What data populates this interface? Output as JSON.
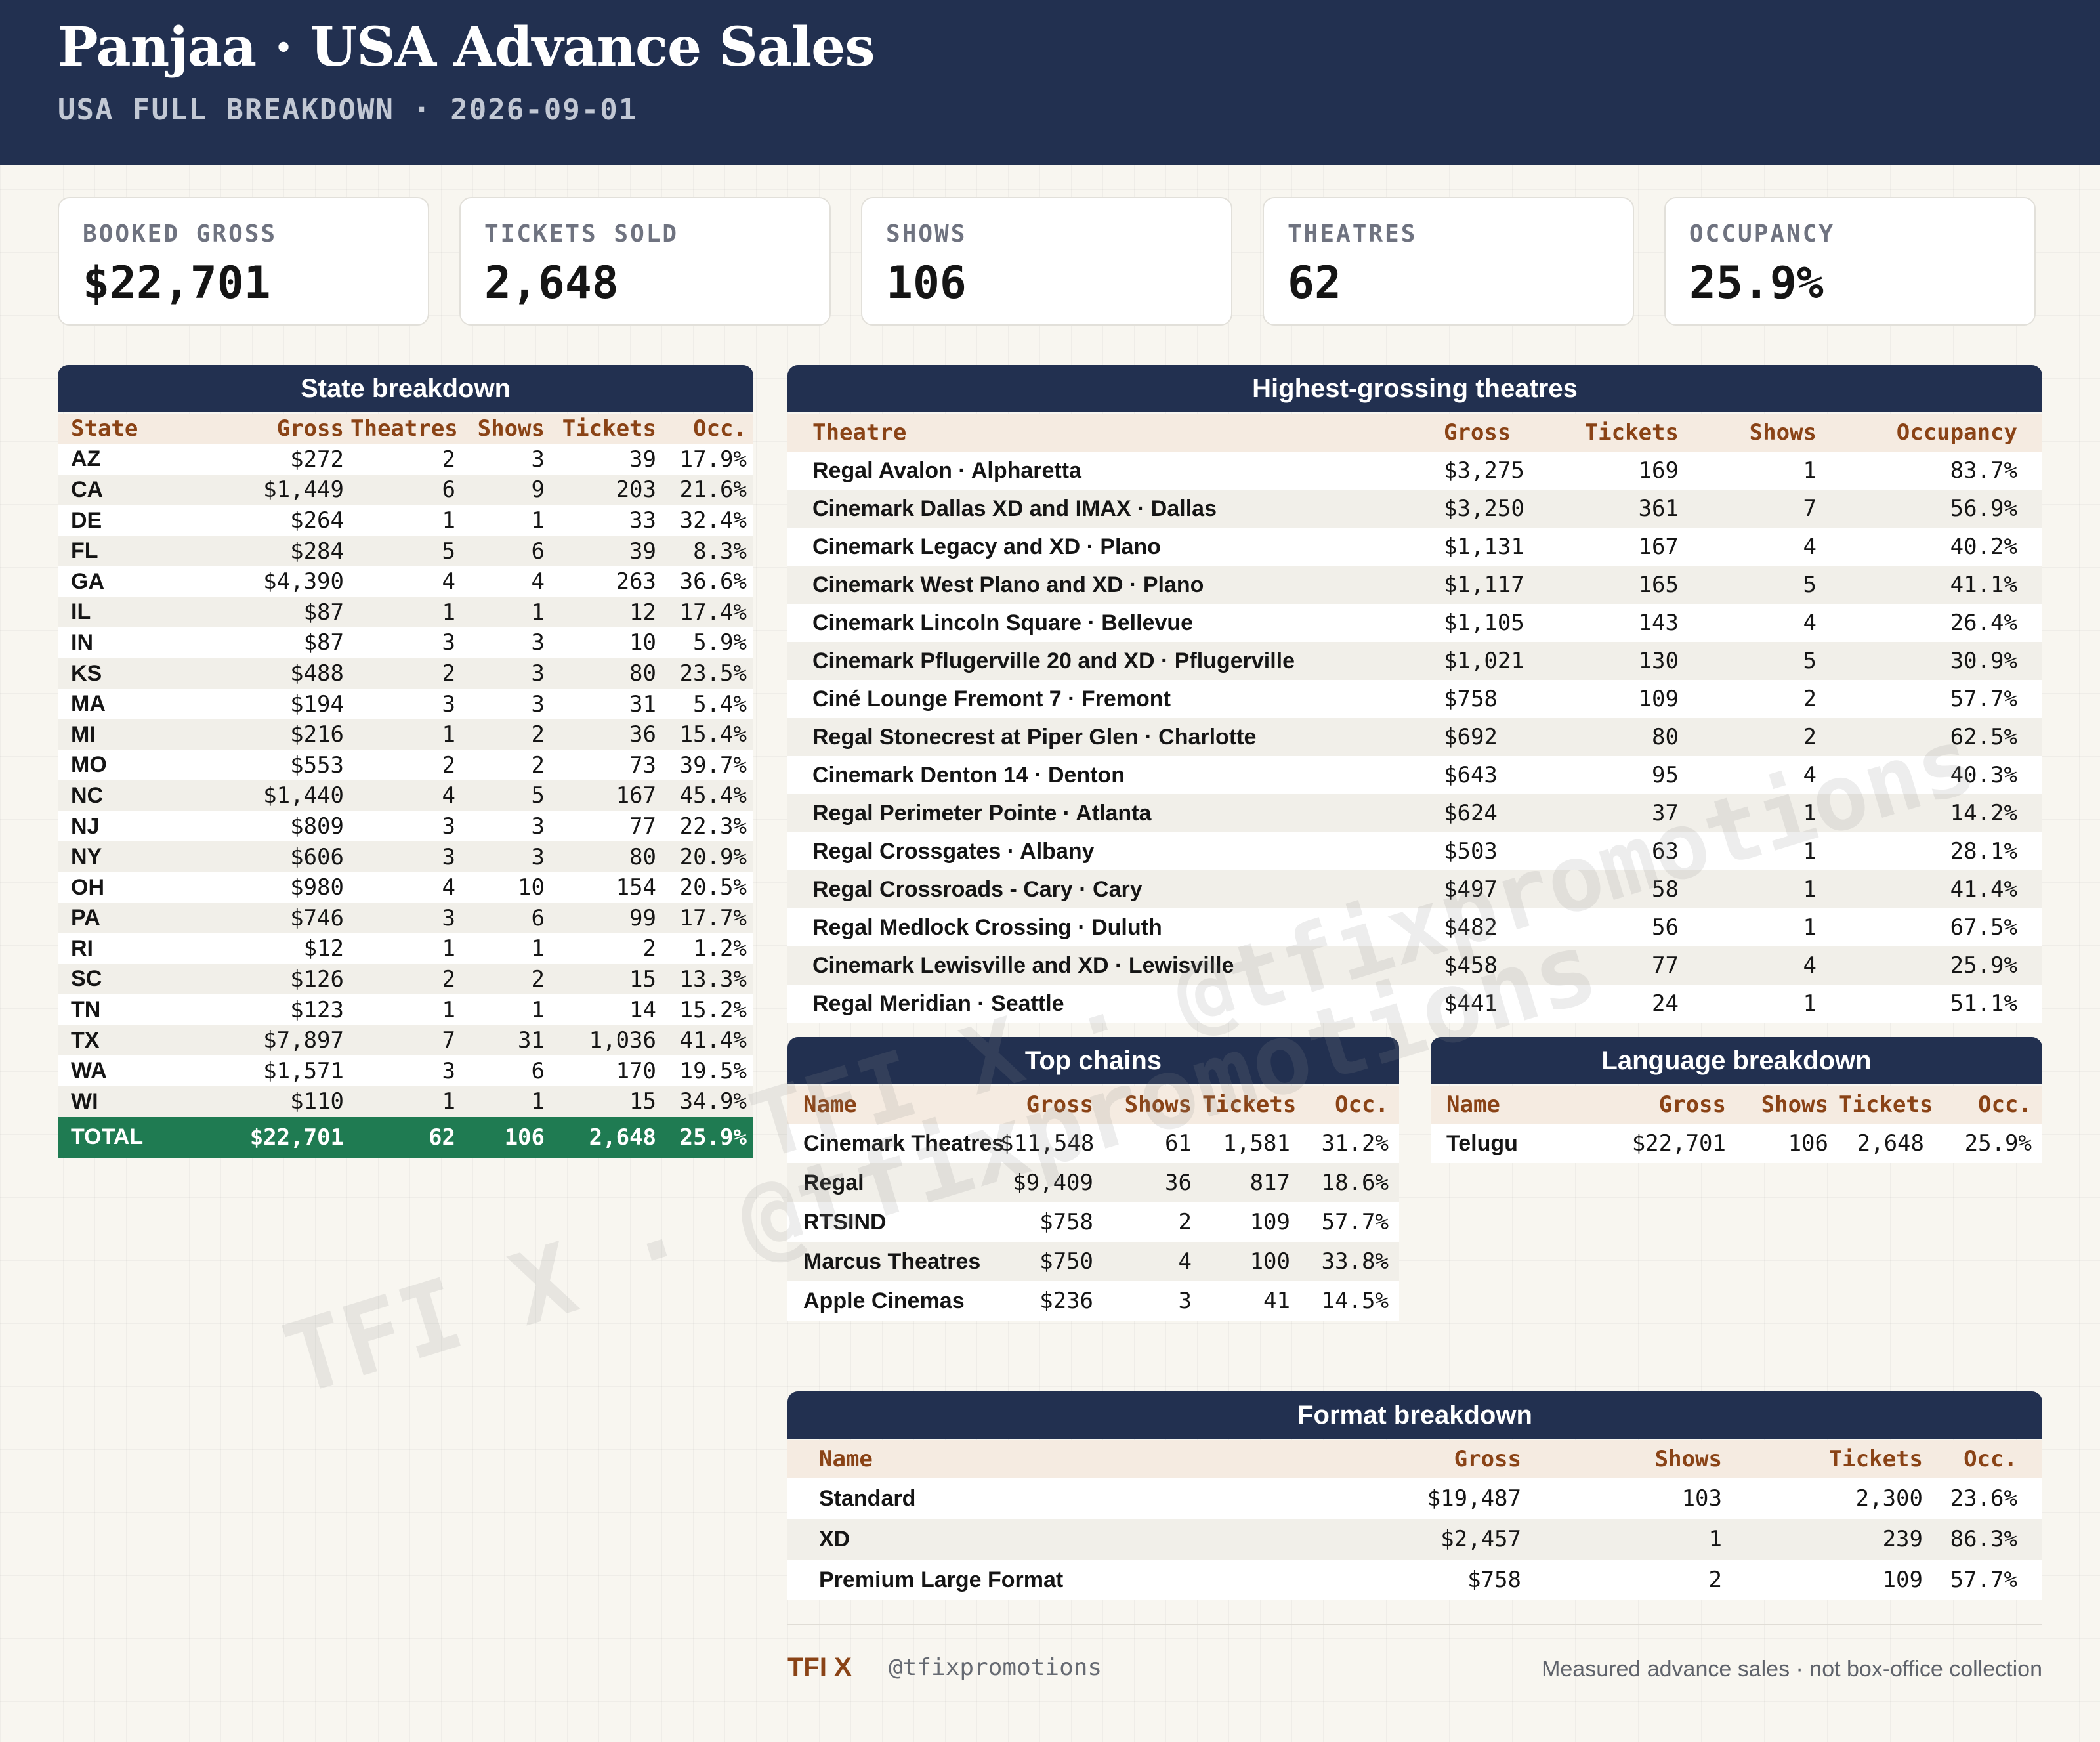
{
  "header": {
    "title": "Panjaa · USA Advance Sales",
    "subtitle": "USA FULL BREAKDOWN · 2026-09-01"
  },
  "kpis": [
    {
      "label": "BOOKED GROSS",
      "value": "$22,701"
    },
    {
      "label": "TICKETS SOLD",
      "value": "2,648"
    },
    {
      "label": "SHOWS",
      "value": "106"
    },
    {
      "label": "THEATRES",
      "value": "62"
    },
    {
      "label": "OCCUPANCY",
      "value": "25.9%"
    }
  ],
  "state_breakdown": {
    "title": "State breakdown",
    "columns": [
      "State",
      "Gross",
      "Theatres",
      "Shows",
      "Tickets",
      "Occ."
    ],
    "rows": [
      [
        "AZ",
        "$272",
        "2",
        "3",
        "39",
        "17.9%"
      ],
      [
        "CA",
        "$1,449",
        "6",
        "9",
        "203",
        "21.6%"
      ],
      [
        "DE",
        "$264",
        "1",
        "1",
        "33",
        "32.4%"
      ],
      [
        "FL",
        "$284",
        "5",
        "6",
        "39",
        "8.3%"
      ],
      [
        "GA",
        "$4,390",
        "4",
        "4",
        "263",
        "36.6%"
      ],
      [
        "IL",
        "$87",
        "1",
        "1",
        "12",
        "17.4%"
      ],
      [
        "IN",
        "$87",
        "3",
        "3",
        "10",
        "5.9%"
      ],
      [
        "KS",
        "$488",
        "2",
        "3",
        "80",
        "23.5%"
      ],
      [
        "MA",
        "$194",
        "3",
        "3",
        "31",
        "5.4%"
      ],
      [
        "MI",
        "$216",
        "1",
        "2",
        "36",
        "15.4%"
      ],
      [
        "MO",
        "$553",
        "2",
        "2",
        "73",
        "39.7%"
      ],
      [
        "NC",
        "$1,440",
        "4",
        "5",
        "167",
        "45.4%"
      ],
      [
        "NJ",
        "$809",
        "3",
        "3",
        "77",
        "22.3%"
      ],
      [
        "NY",
        "$606",
        "3",
        "3",
        "80",
        "20.9%"
      ],
      [
        "OH",
        "$980",
        "4",
        "10",
        "154",
        "20.5%"
      ],
      [
        "PA",
        "$746",
        "3",
        "6",
        "99",
        "17.7%"
      ],
      [
        "RI",
        "$12",
        "1",
        "1",
        "2",
        "1.2%"
      ],
      [
        "SC",
        "$126",
        "2",
        "2",
        "15",
        "13.3%"
      ],
      [
        "TN",
        "$123",
        "1",
        "1",
        "14",
        "15.2%"
      ],
      [
        "TX",
        "$7,897",
        "7",
        "31",
        "1,036",
        "41.4%"
      ],
      [
        "WA",
        "$1,571",
        "3",
        "6",
        "170",
        "19.5%"
      ],
      [
        "WI",
        "$110",
        "1",
        "1",
        "15",
        "34.9%"
      ]
    ],
    "total": [
      "TOTAL",
      "$22,701",
      "62",
      "106",
      "2,648",
      "25.9%"
    ]
  },
  "top_theatres": {
    "title": "Highest-grossing theatres",
    "columns": [
      "Theatre",
      "Gross",
      "Tickets",
      "Shows",
      "Occupancy"
    ],
    "rows": [
      [
        "Regal Avalon · Alpharetta",
        "$3,275",
        "169",
        "1",
        "83.7%"
      ],
      [
        "Cinemark Dallas XD and IMAX · Dallas",
        "$3,250",
        "361",
        "7",
        "56.9%"
      ],
      [
        "Cinemark Legacy and XD · Plano",
        "$1,131",
        "167",
        "4",
        "40.2%"
      ],
      [
        "Cinemark West Plano and XD · Plano",
        "$1,117",
        "165",
        "5",
        "41.1%"
      ],
      [
        "Cinemark Lincoln Square · Bellevue",
        "$1,105",
        "143",
        "4",
        "26.4%"
      ],
      [
        "Cinemark Pflugerville 20 and XD · Pflugerville",
        "$1,021",
        "130",
        "5",
        "30.9%"
      ],
      [
        "Ciné Lounge Fremont 7 · Fremont",
        "$758",
        "109",
        "2",
        "57.7%"
      ],
      [
        "Regal Stonecrest at Piper Glen · Charlotte",
        "$692",
        "80",
        "2",
        "62.5%"
      ],
      [
        "Cinemark Denton 14 · Denton",
        "$643",
        "95",
        "4",
        "40.3%"
      ],
      [
        "Regal Perimeter Pointe · Atlanta",
        "$624",
        "37",
        "1",
        "14.2%"
      ],
      [
        "Regal Crossgates · Albany",
        "$503",
        "63",
        "1",
        "28.1%"
      ],
      [
        "Regal Crossroads - Cary · Cary",
        "$497",
        "58",
        "1",
        "41.4%"
      ],
      [
        "Regal Medlock Crossing · Duluth",
        "$482",
        "56",
        "1",
        "67.5%"
      ],
      [
        "Cinemark Lewisville and XD · Lewisville",
        "$458",
        "77",
        "4",
        "25.9%"
      ],
      [
        "Regal Meridian · Seattle",
        "$441",
        "24",
        "1",
        "51.1%"
      ]
    ]
  },
  "top_chains": {
    "title": "Top chains",
    "columns": [
      "Name",
      "Gross",
      "Shows",
      "Tickets",
      "Occ."
    ],
    "rows": [
      [
        "Cinemark Theatres",
        "$11,548",
        "61",
        "1,581",
        "31.2%"
      ],
      [
        "Regal",
        "$9,409",
        "36",
        "817",
        "18.6%"
      ],
      [
        "RTSIND",
        "$758",
        "2",
        "109",
        "57.7%"
      ],
      [
        "Marcus Theatres",
        "$750",
        "4",
        "100",
        "33.8%"
      ],
      [
        "Apple Cinemas",
        "$236",
        "3",
        "41",
        "14.5%"
      ]
    ]
  },
  "language_breakdown": {
    "title": "Language breakdown",
    "columns": [
      "Name",
      "Gross",
      "Shows",
      "Tickets",
      "Occ."
    ],
    "rows": [
      [
        "Telugu",
        "$22,701",
        "106",
        "2,648",
        "25.9%"
      ]
    ]
  },
  "format_breakdown": {
    "title": "Format breakdown",
    "columns": [
      "Name",
      "Gross",
      "Shows",
      "Tickets",
      "Occ."
    ],
    "rows": [
      [
        "Standard",
        "$19,487",
        "103",
        "2,300",
        "23.6%"
      ],
      [
        "XD",
        "$2,457",
        "1",
        "239",
        "86.3%"
      ],
      [
        "Premium Large Format",
        "$758",
        "2",
        "109",
        "57.7%"
      ]
    ]
  },
  "footer": {
    "brand": "TFI X",
    "handle": "@tfixpromotions",
    "note": "Measured advance sales · not box-office collection"
  },
  "watermarks": [
    "TFI X · @tfixpromotions",
    "TFI X · @tfixpromotions"
  ]
}
